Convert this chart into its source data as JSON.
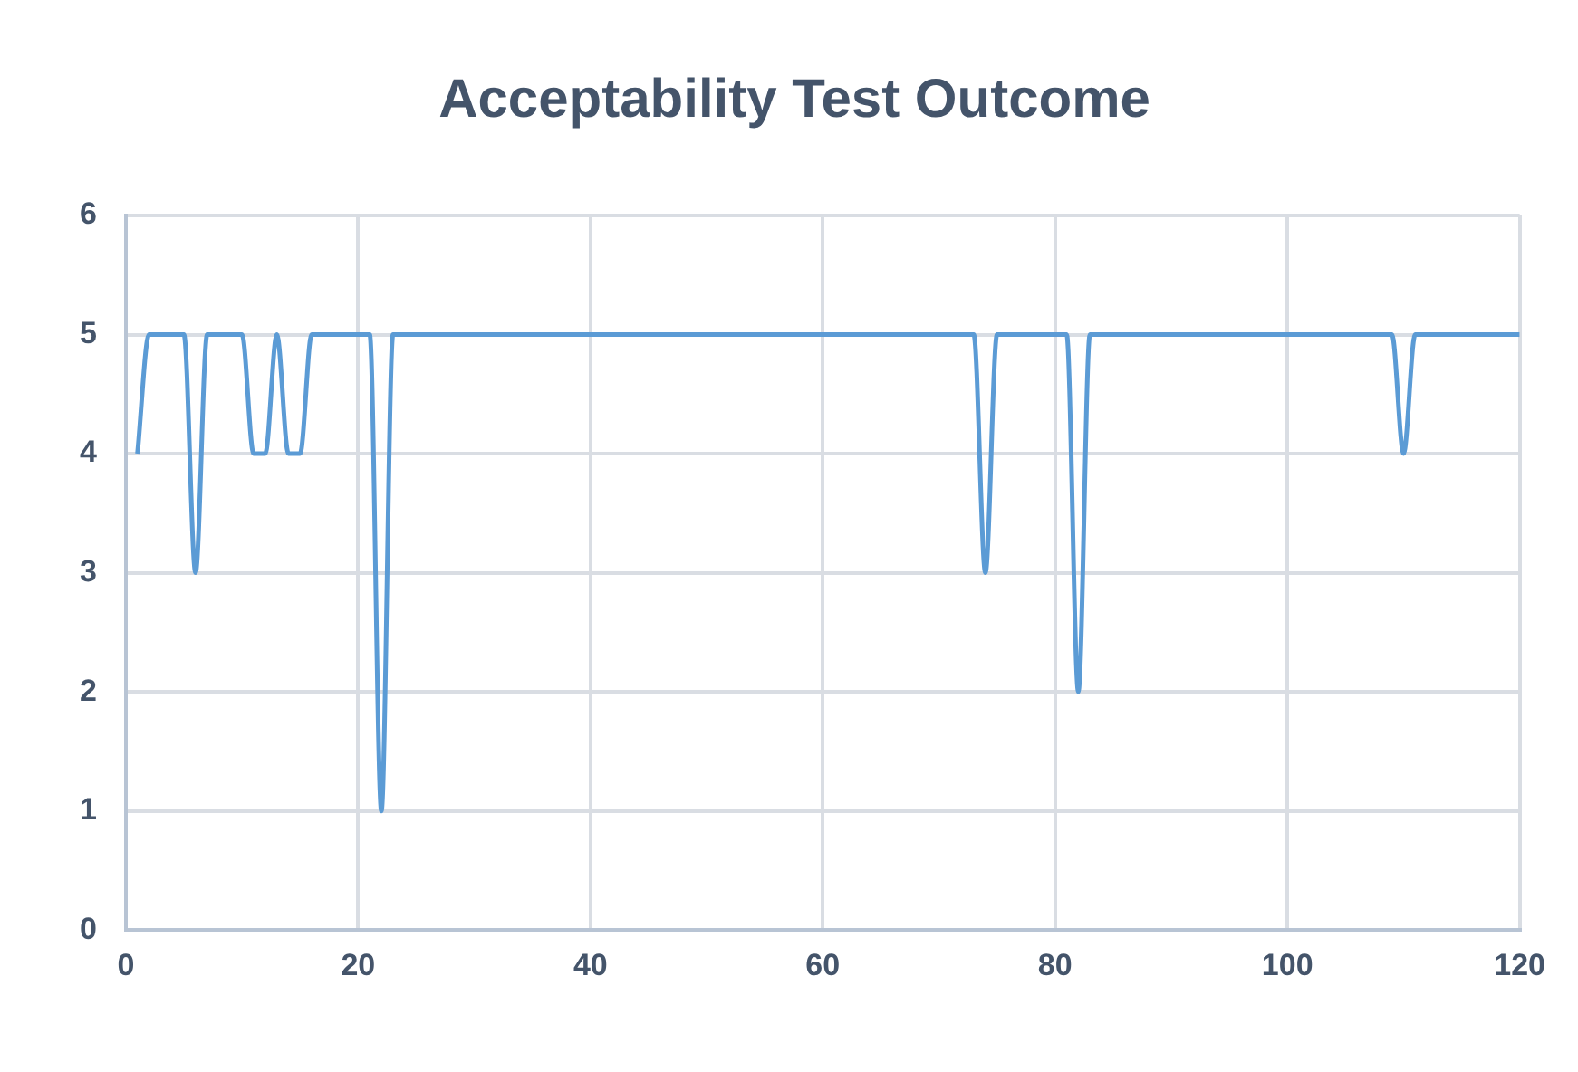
{
  "chart_data": {
    "type": "line",
    "title": "Acceptability Test Outcome",
    "x": [
      1,
      2,
      3,
      4,
      5,
      6,
      7,
      8,
      9,
      10,
      11,
      12,
      13,
      14,
      15,
      16,
      17,
      18,
      19,
      20,
      21,
      22,
      23,
      24,
      25,
      26,
      27,
      28,
      29,
      30,
      31,
      32,
      33,
      34,
      35,
      36,
      37,
      38,
      39,
      40,
      41,
      42,
      43,
      44,
      45,
      46,
      47,
      48,
      49,
      50,
      51,
      52,
      53,
      54,
      55,
      56,
      57,
      58,
      59,
      60,
      61,
      62,
      63,
      64,
      65,
      66,
      67,
      68,
      69,
      70,
      71,
      72,
      73,
      74,
      75,
      76,
      77,
      78,
      79,
      80,
      81,
      82,
      83,
      84,
      85,
      86,
      87,
      88,
      89,
      90,
      91,
      92,
      93,
      94,
      95,
      96,
      97,
      98,
      99,
      100,
      101,
      102,
      103,
      104,
      105,
      106,
      107,
      108,
      109,
      110,
      111,
      112,
      113,
      114,
      115,
      116,
      117,
      118,
      119,
      120
    ],
    "series": [
      {
        "color": "#5b9bd5",
        "values": [
          4,
          5,
          5,
          5,
          5,
          3,
          5,
          5,
          5,
          5,
          4,
          4,
          5,
          4,
          4,
          5,
          5,
          5,
          5,
          5,
          5,
          1,
          5,
          5,
          5,
          5,
          5,
          5,
          5,
          5,
          5,
          5,
          5,
          5,
          5,
          5,
          5,
          5,
          5,
          5,
          5,
          5,
          5,
          5,
          5,
          5,
          5,
          5,
          5,
          5,
          5,
          5,
          5,
          5,
          5,
          5,
          5,
          5,
          5,
          5,
          5,
          5,
          5,
          5,
          5,
          5,
          5,
          5,
          5,
          5,
          5,
          5,
          5,
          3,
          5,
          5,
          5,
          5,
          5,
          5,
          5,
          2,
          5,
          5,
          5,
          5,
          5,
          5,
          5,
          5,
          5,
          5,
          5,
          5,
          5,
          5,
          5,
          5,
          5,
          5,
          5,
          5,
          5,
          5,
          5,
          5,
          5,
          5,
          5,
          4,
          5,
          5,
          5,
          5,
          5,
          5,
          5,
          5,
          5,
          5
        ]
      }
    ],
    "xlim": [
      0,
      120
    ],
    "xticks": [
      0,
      20,
      40,
      60,
      80,
      100,
      120
    ],
    "ylim": [
      0,
      6
    ],
    "yticks": [
      0,
      1,
      2,
      3,
      4,
      5,
      6
    ],
    "grid": true,
    "legend": false,
    "marker": "none",
    "line_style": "solid"
  }
}
